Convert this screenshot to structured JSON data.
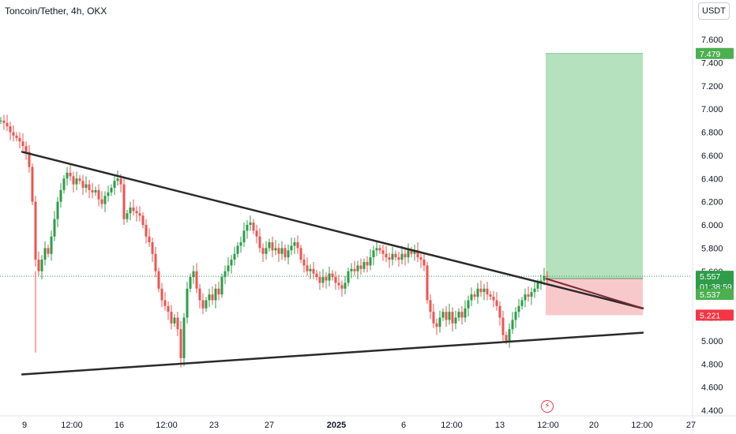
{
  "header": {
    "title": "Toncoin/Tether, 4h, OKX",
    "currency_button": "USDT"
  },
  "colors": {
    "up": "#26a69a",
    "up_alt": "#2e9c48",
    "down": "#ef5350",
    "profit_zone": "#b2dfbb",
    "loss_zone": "#f7c6c8",
    "trend_line": "#2a2a2a",
    "price_tag": "#2e9c48",
    "stop_tag": "#f23645"
  },
  "chart_data": {
    "type": "candlestick",
    "title": "Toncoin/Tether, 4h, OKX",
    "y_axis": {
      "ticks": [
        "7.600",
        "7.400",
        "7.200",
        "7.000",
        "6.800",
        "6.600",
        "6.400",
        "6.200",
        "6.000",
        "5.800",
        "5.600",
        "5.400",
        "5.200",
        "5.000",
        "4.800",
        "4.600",
        "4.400"
      ],
      "tick_values": [
        7.6,
        7.4,
        7.2,
        7.0,
        6.8,
        6.6,
        6.4,
        6.2,
        6.0,
        5.8,
        5.6,
        5.4,
        5.2,
        5.0,
        4.8,
        4.6,
        4.4
      ],
      "range": [
        4.39,
        7.83
      ]
    },
    "x_axis": {
      "ticks": [
        {
          "label": "9",
          "bold": false
        },
        {
          "label": "12:00",
          "bold": false
        },
        {
          "label": "16",
          "bold": false
        },
        {
          "label": "12:00",
          "bold": false
        },
        {
          "label": "23",
          "bold": false
        },
        {
          "label": "27",
          "bold": false
        },
        {
          "label": "2025",
          "bold": true
        },
        {
          "label": "6",
          "bold": false
        },
        {
          "label": "12:00",
          "bold": false
        },
        {
          "label": "13",
          "bold": false
        },
        {
          "label": "12:00",
          "bold": false
        },
        {
          "label": "20",
          "bold": false
        },
        {
          "label": "12:00",
          "bold": false
        },
        {
          "label": "27",
          "bold": false
        }
      ]
    },
    "price_path": [
      [
        0,
        6.9
      ],
      [
        4,
        6.88
      ],
      [
        8,
        6.85
      ],
      [
        12,
        6.8
      ],
      [
        16,
        6.77
      ],
      [
        20,
        6.75
      ],
      [
        24,
        6.72
      ],
      [
        28,
        6.68
      ],
      [
        32,
        6.63
      ],
      [
        36,
        6.5
      ],
      [
        40,
        6.2
      ],
      [
        44,
        5.7
      ],
      [
        48,
        5.6
      ],
      [
        52,
        5.7
      ],
      [
        56,
        5.8
      ],
      [
        60,
        5.75
      ],
      [
        64,
        5.9
      ],
      [
        68,
        6.05
      ],
      [
        72,
        6.2
      ],
      [
        76,
        6.3
      ],
      [
        80,
        6.4
      ],
      [
        84,
        6.45
      ],
      [
        88,
        6.42
      ],
      [
        92,
        6.35
      ],
      [
        96,
        6.4
      ],
      [
        100,
        6.38
      ],
      [
        104,
        6.32
      ],
      [
        108,
        6.35
      ],
      [
        112,
        6.3
      ],
      [
        116,
        6.28
      ],
      [
        120,
        6.3
      ],
      [
        124,
        6.22
      ],
      [
        128,
        6.18
      ],
      [
        132,
        6.25
      ],
      [
        136,
        6.28
      ],
      [
        140,
        6.32
      ],
      [
        144,
        6.38
      ],
      [
        148,
        6.4
      ],
      [
        152,
        6.35
      ],
      [
        156,
        6.05
      ],
      [
        160,
        6.1
      ],
      [
        164,
        6.15
      ],
      [
        168,
        6.12
      ],
      [
        172,
        6.1
      ],
      [
        176,
        6.08
      ],
      [
        180,
        6.0
      ],
      [
        184,
        5.9
      ],
      [
        188,
        5.85
      ],
      [
        192,
        5.75
      ],
      [
        196,
        5.6
      ],
      [
        200,
        5.45
      ],
      [
        204,
        5.35
      ],
      [
        208,
        5.3
      ],
      [
        212,
        5.25
      ],
      [
        216,
        5.15
      ],
      [
        220,
        5.2
      ],
      [
        224,
        5.1
      ],
      [
        228,
        4.85
      ],
      [
        232,
        5.2
      ],
      [
        236,
        5.45
      ],
      [
        240,
        5.55
      ],
      [
        244,
        5.6
      ],
      [
        248,
        5.45
      ],
      [
        252,
        5.35
      ],
      [
        256,
        5.28
      ],
      [
        260,
        5.35
      ],
      [
        264,
        5.4
      ],
      [
        268,
        5.35
      ],
      [
        272,
        5.45
      ],
      [
        276,
        5.4
      ],
      [
        280,
        5.55
      ],
      [
        284,
        5.6
      ],
      [
        288,
        5.65
      ],
      [
        292,
        5.7
      ],
      [
        296,
        5.75
      ],
      [
        300,
        5.82
      ],
      [
        304,
        5.85
      ],
      [
        308,
        5.95
      ],
      [
        312,
        6.0
      ],
      [
        316,
        6.02
      ],
      [
        320,
        5.95
      ],
      [
        324,
        5.9
      ],
      [
        328,
        5.8
      ],
      [
        332,
        5.75
      ],
      [
        336,
        5.8
      ],
      [
        340,
        5.85
      ],
      [
        344,
        5.78
      ],
      [
        348,
        5.8
      ],
      [
        352,
        5.75
      ],
      [
        356,
        5.8
      ],
      [
        360,
        5.72
      ],
      [
        364,
        5.78
      ],
      [
        368,
        5.82
      ],
      [
        372,
        5.85
      ],
      [
        376,
        5.8
      ],
      [
        380,
        5.7
      ],
      [
        384,
        5.65
      ],
      [
        388,
        5.6
      ],
      [
        392,
        5.62
      ],
      [
        396,
        5.58
      ],
      [
        400,
        5.55
      ],
      [
        404,
        5.5
      ],
      [
        408,
        5.55
      ],
      [
        412,
        5.52
      ],
      [
        416,
        5.58
      ],
      [
        420,
        5.55
      ],
      [
        424,
        5.5
      ],
      [
        428,
        5.48
      ],
      [
        432,
        5.45
      ],
      [
        436,
        5.5
      ],
      [
        440,
        5.6
      ],
      [
        444,
        5.62
      ],
      [
        448,
        5.6
      ],
      [
        452,
        5.65
      ],
      [
        456,
        5.62
      ],
      [
        460,
        5.68
      ],
      [
        464,
        5.65
      ],
      [
        468,
        5.72
      ],
      [
        472,
        5.78
      ],
      [
        476,
        5.8
      ],
      [
        480,
        5.78
      ],
      [
        484,
        5.75
      ],
      [
        488,
        5.72
      ],
      [
        492,
        5.7
      ],
      [
        496,
        5.75
      ],
      [
        500,
        5.72
      ],
      [
        504,
        5.7
      ],
      [
        508,
        5.75
      ],
      [
        512,
        5.72
      ],
      [
        516,
        5.78
      ],
      [
        520,
        5.75
      ],
      [
        524,
        5.78
      ],
      [
        528,
        5.72
      ],
      [
        532,
        5.7
      ],
      [
        536,
        5.65
      ],
      [
        540,
        5.35
      ],
      [
        544,
        5.25
      ],
      [
        548,
        5.15
      ],
      [
        552,
        5.12
      ],
      [
        556,
        5.2
      ],
      [
        560,
        5.25
      ],
      [
        564,
        5.18
      ],
      [
        568,
        5.25
      ],
      [
        572,
        5.15
      ],
      [
        576,
        5.2
      ],
      [
        580,
        5.25
      ],
      [
        584,
        5.2
      ],
      [
        588,
        5.28
      ],
      [
        592,
        5.35
      ],
      [
        596,
        5.4
      ],
      [
        600,
        5.38
      ],
      [
        604,
        5.45
      ],
      [
        608,
        5.42
      ],
      [
        612,
        5.45
      ],
      [
        616,
        5.4
      ],
      [
        620,
        5.38
      ],
      [
        624,
        5.35
      ],
      [
        628,
        5.3
      ],
      [
        632,
        5.2
      ],
      [
        636,
        5.05
      ],
      [
        640,
        5.0
      ],
      [
        644,
        5.1
      ],
      [
        648,
        5.18
      ],
      [
        652,
        5.25
      ],
      [
        656,
        5.3
      ],
      [
        660,
        5.35
      ],
      [
        664,
        5.4
      ],
      [
        668,
        5.38
      ],
      [
        672,
        5.42
      ],
      [
        676,
        5.45
      ],
      [
        680,
        5.5
      ],
      [
        684,
        5.52
      ],
      [
        688,
        5.56
      ],
      [
        692,
        5.55
      ]
    ],
    "trend_lines": [
      {
        "x1": 28,
        "y1": 6.63,
        "x2": 814,
        "y2": 5.28
      },
      {
        "x1": 28,
        "y1": 4.71,
        "x2": 814,
        "y2": 5.07
      }
    ],
    "position": {
      "left_x": 691,
      "right_x": 814,
      "target": 7.479,
      "entry": 5.537,
      "stop": 5.221
    },
    "price_tags": [
      {
        "label": "7.479",
        "value": 7.479,
        "kind": "target"
      },
      {
        "label": "5.557",
        "value": 5.557,
        "kind": "price"
      },
      {
        "label": "01:38:59",
        "value": 5.557,
        "kind": "countdown"
      },
      {
        "label": "5.537",
        "value": 5.537,
        "kind": "entry"
      },
      {
        "label": "5.221",
        "value": 5.221,
        "kind": "stop"
      }
    ],
    "current_price": 5.557
  }
}
